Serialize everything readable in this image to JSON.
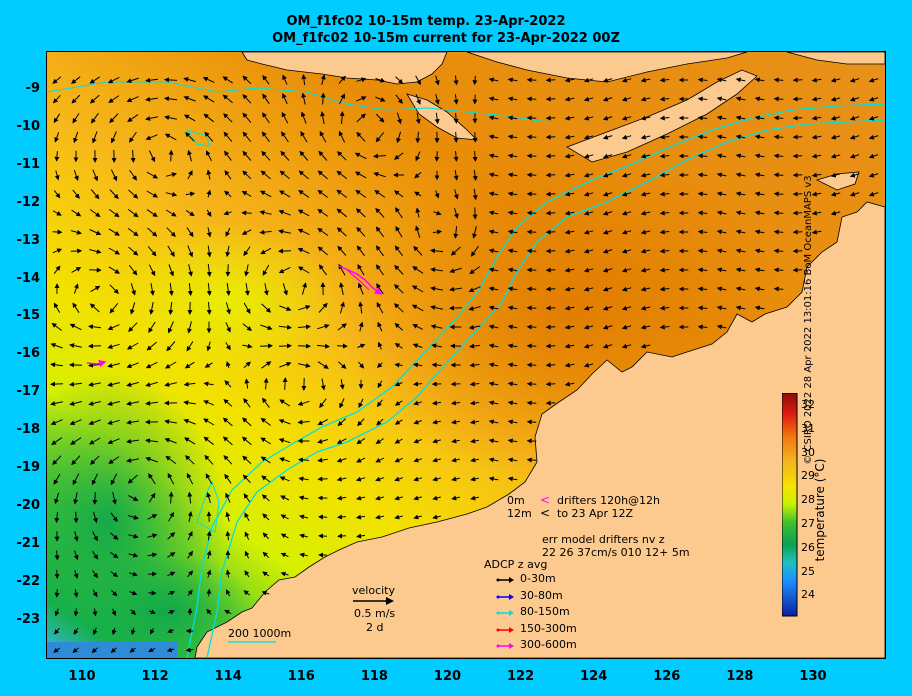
{
  "title_line1": "OM_f1fc02 10-15m temp. 23-Apr-2022",
  "title_line2": "OM_f1fc02 10-15m current for 23-Apr-2022 00Z",
  "axes": {
    "lat_ticks": [
      "-9",
      "-10",
      "-11",
      "-12",
      "-13",
      "-14",
      "-15",
      "-16",
      "-17",
      "-18",
      "-19",
      "-20",
      "-21",
      "-22",
      "-23"
    ],
    "lon_ticks": [
      "110",
      "112",
      "114",
      "116",
      "118",
      "120",
      "122",
      "124",
      "126",
      "128",
      "130"
    ],
    "lon_range": [
      109,
      132
    ],
    "lat_range": [
      -24.1,
      -8.1
    ]
  },
  "colorbar": {
    "title": "temperature (°C)",
    "ticks": [
      "32",
      "31",
      "30",
      "29",
      "28",
      "27",
      "26",
      "25",
      "24"
    ],
    "range": [
      23.2,
      32.6
    ]
  },
  "legend": {
    "drifter_depth_0": "0m",
    "drifter_depth_12": "12m",
    "drifters_line1": "drifters 120h@12h",
    "drifters_line2": "to 23 Apr 12Z",
    "err_line1": "err model drifters nv z",
    "err_line2": "22 26 37cm/s 010 12+ 5m",
    "adcp_title": "ADCP z avg",
    "adcp_items": [
      {
        "label": "0-30m",
        "color": "#000000"
      },
      {
        "label": "30-80m",
        "color": "#0000ff"
      },
      {
        "label": "80-150m",
        "color": "#00dddd"
      },
      {
        "label": "150-300m",
        "color": "#ff0000"
      },
      {
        "label": "300-600m",
        "color": "#ff00ff"
      }
    ],
    "velocity_title": "velocity",
    "velocity_scale": "0.5 m/s",
    "velocity_duration": "2 d",
    "isobath_label": "200  1000m"
  },
  "copyright": "© CSIRO 2022  28 Apr 2022 13:01:16 BoM OceanMAPS v3",
  "colors": {
    "land": "#fcc98f",
    "background": "#00ccff",
    "isobath": "#00e0e0",
    "arrow": "#000000",
    "drifter": "#ff00ff"
  }
}
